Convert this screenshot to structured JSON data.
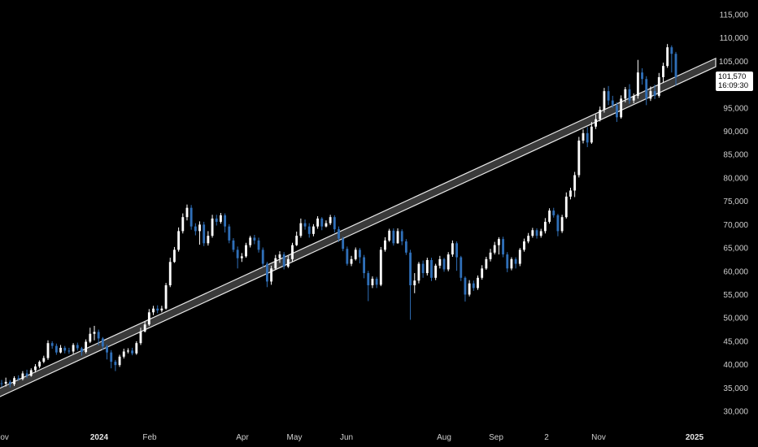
{
  "chart_data": {
    "type": "candlestick",
    "y_axis": {
      "ticks": [
        "115,000",
        "110,000",
        "105,000",
        "100,000",
        "95,000",
        "90,000",
        "85,000",
        "80,000",
        "75,000",
        "70,000",
        "65,000",
        "60,000",
        "55,000",
        "50,000",
        "45,000",
        "40,000",
        "35,000",
        "30,000"
      ],
      "tick_values": [
        115000,
        110000,
        105000,
        100000,
        95000,
        90000,
        85000,
        80000,
        75000,
        70000,
        65000,
        60000,
        55000,
        50000,
        45000,
        40000,
        35000,
        30000
      ],
      "ylim": [
        28500,
        117500
      ]
    },
    "x_axis": {
      "ticks": [
        {
          "label": "Nov",
          "strong": false
        },
        {
          "label": "2024",
          "strong": true
        },
        {
          "label": "Feb",
          "strong": false
        },
        {
          "label": "Apr",
          "strong": false
        },
        {
          "label": "May",
          "strong": false
        },
        {
          "label": "Jun",
          "strong": false
        },
        {
          "label": "Aug",
          "strong": false
        },
        {
          "label": "Sep",
          "strong": false
        },
        {
          "label": "2",
          "strong": false
        },
        {
          "label": "Nov",
          "strong": false
        },
        {
          "label": "2025",
          "strong": true
        }
      ]
    },
    "last_price": "101,570",
    "countdown": "16:09:30",
    "trend_channel": {
      "start": [
        0,
        34200
      ],
      "end": [
        1,
        100800
      ],
      "width": 1800
    },
    "candles": [
      [
        36.0,
        35.9,
        36.7,
        35.2
      ],
      [
        35.9,
        36.3,
        37.2,
        35.3
      ],
      [
        36.3,
        35.8,
        36.7,
        35.1
      ],
      [
        35.8,
        37.1,
        37.5,
        35.4
      ],
      [
        37.1,
        36.9,
        37.7,
        36.5
      ],
      [
        36.9,
        38.1,
        38.6,
        36.6
      ],
      [
        38.1,
        37.6,
        38.9,
        37.1
      ],
      [
        37.6,
        38.8,
        39.2,
        37.4
      ],
      [
        38.8,
        39.6,
        40.1,
        38.3
      ],
      [
        39.6,
        40.6,
        40.9,
        39.2
      ],
      [
        40.6,
        41.4,
        41.9,
        40.3
      ],
      [
        41.4,
        44.6,
        45.2,
        41.0
      ],
      [
        44.6,
        44.0,
        45.0,
        43.4
      ],
      [
        44.0,
        42.6,
        44.5,
        42.1
      ],
      [
        42.6,
        43.6,
        44.2,
        42.4
      ],
      [
        43.6,
        43.0,
        44.0,
        42.4
      ],
      [
        43.0,
        42.8,
        43.6,
        42.3
      ],
      [
        42.8,
        44.2,
        44.6,
        42.3
      ],
      [
        44.2,
        43.5,
        44.7,
        43.0
      ],
      [
        43.5,
        42.7,
        43.8,
        41.9
      ],
      [
        42.7,
        44.9,
        45.4,
        42.4
      ],
      [
        44.9,
        46.6,
        47.9,
        44.6
      ],
      [
        46.6,
        47.0,
        48.3,
        45.2
      ],
      [
        47.0,
        45.6,
        47.5,
        44.1
      ],
      [
        45.6,
        43.9,
        45.9,
        43.2
      ],
      [
        43.9,
        42.6,
        44.3,
        41.1
      ],
      [
        42.6,
        40.6,
        43.1,
        39.2
      ],
      [
        40.6,
        39.9,
        41.0,
        38.6
      ],
      [
        39.9,
        41.7,
        42.1,
        39.5
      ],
      [
        41.7,
        42.8,
        43.4,
        41.3
      ],
      [
        42.8,
        43.0,
        43.5,
        42.4
      ],
      [
        43.0,
        42.4,
        43.6,
        42.0
      ],
      [
        42.4,
        44.6,
        45.0,
        42.1
      ],
      [
        44.6,
        47.1,
        47.9,
        44.2
      ],
      [
        47.1,
        48.6,
        49.2,
        46.9
      ],
      [
        48.6,
        51.2,
        51.9,
        48.3
      ],
      [
        51.2,
        52.0,
        52.6,
        50.6
      ],
      [
        52.0,
        51.6,
        52.7,
        51.0
      ],
      [
        51.6,
        52.0,
        52.6,
        51.2
      ],
      [
        52.0,
        57.0,
        57.5,
        51.8
      ],
      [
        57.0,
        62.0,
        62.9,
        56.6
      ],
      [
        62.0,
        64.6,
        65.2,
        61.8
      ],
      [
        64.6,
        68.6,
        69.4,
        64.2
      ],
      [
        68.6,
        71.6,
        72.4,
        68.1
      ],
      [
        71.6,
        73.6,
        74.3,
        70.9
      ],
      [
        73.6,
        69.6,
        74.2,
        68.9
      ],
      [
        69.6,
        68.6,
        70.3,
        67.7
      ],
      [
        68.6,
        70.0,
        70.7,
        65.7
      ],
      [
        70.0,
        66.0,
        70.6,
        65.4
      ],
      [
        66.0,
        67.6,
        68.6,
        65.5
      ],
      [
        67.6,
        71.3,
        72.1,
        67.2
      ],
      [
        71.3,
        70.6,
        72.1,
        69.8
      ],
      [
        70.6,
        72.0,
        72.5,
        70.2
      ],
      [
        72.0,
        69.6,
        72.4,
        68.3
      ],
      [
        69.6,
        66.6,
        70.1,
        66.0
      ],
      [
        66.6,
        64.6,
        67.1,
        64.1
      ],
      [
        64.6,
        62.8,
        65.3,
        60.6
      ],
      [
        62.8,
        63.2,
        63.9,
        62.0
      ],
      [
        63.2,
        65.6,
        66.1,
        62.9
      ],
      [
        65.6,
        67.2,
        67.6,
        65.1
      ],
      [
        67.2,
        66.6,
        67.8,
        65.8
      ],
      [
        66.6,
        64.6,
        67.2,
        64.0
      ],
      [
        64.6,
        61.6,
        65.1,
        60.8
      ],
      [
        61.6,
        57.8,
        62.0,
        56.6
      ],
      [
        57.8,
        60.6,
        61.2,
        57.1
      ],
      [
        60.6,
        62.8,
        63.5,
        60.3
      ],
      [
        62.8,
        63.6,
        64.3,
        61.8
      ],
      [
        63.6,
        61.0,
        64.1,
        60.4
      ],
      [
        61.0,
        62.6,
        63.3,
        60.7
      ],
      [
        62.6,
        65.6,
        66.1,
        62.1
      ],
      [
        65.6,
        67.6,
        68.5,
        65.4
      ],
      [
        67.6,
        70.3,
        71.3,
        67.2
      ],
      [
        70.3,
        69.6,
        71.1,
        68.9
      ],
      [
        69.6,
        68.0,
        70.3,
        67.2
      ],
      [
        68.0,
        69.6,
        70.1,
        67.5
      ],
      [
        69.6,
        71.3,
        71.8,
        69.1
      ],
      [
        71.3,
        69.6,
        71.6,
        68.8
      ],
      [
        69.6,
        70.3,
        70.9,
        69.4
      ],
      [
        70.3,
        71.6,
        72.1,
        69.9
      ],
      [
        71.6,
        69.0,
        72.0,
        68.3
      ],
      [
        69.0,
        67.0,
        69.6,
        66.3
      ],
      [
        67.0,
        64.8,
        67.4,
        64.3
      ],
      [
        64.8,
        61.6,
        65.3,
        61.2
      ],
      [
        61.6,
        62.6,
        63.3,
        61.1
      ],
      [
        62.6,
        64.6,
        65.1,
        62.3
      ],
      [
        64.6,
        63.0,
        65.0,
        61.7
      ],
      [
        63.0,
        59.6,
        63.5,
        58.5
      ],
      [
        59.6,
        57.0,
        60.1,
        53.6
      ],
      [
        57.0,
        58.4,
        58.9,
        56.4
      ],
      [
        58.4,
        57.1,
        58.8,
        56.4
      ],
      [
        57.1,
        64.6,
        65.2,
        56.8
      ],
      [
        64.6,
        66.6,
        67.3,
        64.2
      ],
      [
        66.6,
        68.7,
        69.1,
        66.3
      ],
      [
        68.7,
        66.0,
        69.2,
        65.5
      ],
      [
        66.0,
        68.6,
        69.2,
        65.9
      ],
      [
        68.6,
        66.4,
        69.0,
        65.6
      ],
      [
        66.4,
        64.0,
        66.9,
        63.5
      ],
      [
        64.0,
        57.0,
        64.6,
        49.6
      ],
      [
        57.0,
        58.0,
        59.6,
        55.3
      ],
      [
        58.0,
        61.6,
        62.0,
        57.4
      ],
      [
        61.6,
        59.6,
        62.3,
        58.6
      ],
      [
        59.6,
        62.4,
        62.9,
        59.1
      ],
      [
        62.4,
        58.6,
        62.9,
        57.9
      ],
      [
        58.6,
        61.2,
        61.6,
        58.1
      ],
      [
        61.2,
        62.6,
        63.3,
        60.6
      ],
      [
        62.6,
        60.4,
        62.9,
        59.9
      ],
      [
        60.4,
        63.6,
        64.1,
        60.0
      ],
      [
        63.6,
        66.0,
        66.6,
        63.1
      ],
      [
        66.0,
        63.0,
        66.4,
        60.1
      ],
      [
        63.0,
        58.6,
        63.3,
        57.9
      ],
      [
        58.6,
        55.0,
        58.9,
        53.5
      ],
      [
        55.0,
        57.4,
        58.1,
        54.6
      ],
      [
        57.4,
        56.4,
        58.0,
        55.8
      ],
      [
        56.4,
        58.6,
        59.1,
        56.0
      ],
      [
        58.6,
        60.6,
        61.3,
        58.2
      ],
      [
        60.6,
        62.6,
        63.1,
        60.3
      ],
      [
        62.6,
        64.0,
        64.8,
        62.1
      ],
      [
        64.0,
        65.6,
        66.3,
        63.6
      ],
      [
        65.6,
        66.9,
        67.3,
        63.6
      ],
      [
        66.9,
        63.6,
        67.4,
        63.0
      ],
      [
        63.6,
        60.6,
        64.1,
        59.8
      ],
      [
        60.6,
        62.6,
        63.0,
        60.2
      ],
      [
        62.6,
        61.6,
        63.0,
        60.6
      ],
      [
        61.6,
        64.6,
        65.0,
        61.1
      ],
      [
        64.6,
        66.4,
        67.0,
        64.2
      ],
      [
        66.4,
        67.6,
        68.2,
        66.0
      ],
      [
        67.6,
        68.8,
        69.3,
        67.2
      ],
      [
        68.8,
        67.6,
        69.2,
        67.0
      ],
      [
        67.6,
        68.6,
        69.1,
        67.2
      ],
      [
        68.6,
        70.6,
        71.4,
        68.1
      ],
      [
        70.6,
        73.0,
        73.5,
        70.2
      ],
      [
        73.0,
        72.0,
        73.6,
        71.5
      ],
      [
        72.0,
        68.6,
        72.3,
        67.5
      ],
      [
        68.6,
        71.6,
        72.1,
        68.2
      ],
      [
        71.6,
        76.0,
        76.9,
        71.3
      ],
      [
        76.0,
        77.3,
        77.9,
        75.4
      ],
      [
        77.3,
        80.6,
        81.3,
        75.9
      ],
      [
        80.6,
        88.0,
        88.8,
        80.1
      ],
      [
        88.0,
        89.6,
        90.4,
        87.4
      ],
      [
        89.6,
        87.6,
        90.9,
        86.6
      ],
      [
        87.6,
        91.0,
        92.0,
        87.3
      ],
      [
        91.0,
        92.6,
        93.6,
        90.5
      ],
      [
        92.6,
        94.6,
        95.3,
        92.1
      ],
      [
        94.6,
        98.6,
        99.3,
        94.0
      ],
      [
        98.6,
        96.6,
        99.7,
        95.6
      ],
      [
        96.6,
        95.6,
        97.6,
        95.0
      ],
      [
        95.6,
        93.0,
        96.2,
        92.0
      ],
      [
        93.0,
        97.0,
        97.7,
        92.7
      ],
      [
        97.0,
        99.0,
        99.5,
        96.2
      ],
      [
        99.0,
        96.6,
        100.1,
        95.9
      ],
      [
        96.6,
        97.6,
        98.1,
        96.0
      ],
      [
        97.6,
        102.6,
        105.3,
        97.0
      ],
      [
        102.6,
        101.2,
        103.5,
        100.0
      ],
      [
        101.2,
        97.0,
        101.8,
        95.6
      ],
      [
        97.0,
        98.6,
        99.6,
        96.5
      ],
      [
        98.6,
        97.6,
        100.0,
        96.9
      ],
      [
        97.6,
        101.6,
        102.5,
        97.2
      ],
      [
        101.6,
        104.0,
        104.7,
        100.4
      ],
      [
        104.0,
        108.0,
        108.7,
        103.6
      ],
      [
        108.0,
        106.6,
        108.4,
        102.6
      ],
      [
        106.6,
        101.57,
        107.0,
        99.8
      ]
    ]
  }
}
